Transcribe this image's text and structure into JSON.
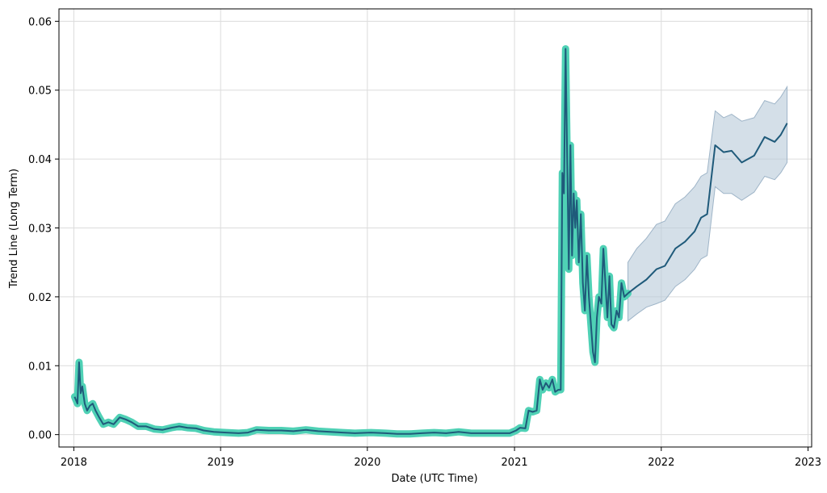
{
  "chart_data": {
    "type": "line",
    "title": "",
    "xlabel": "Date (UTC Time)",
    "ylabel": "Trend Line (Long Term)",
    "xlim": [
      "2017-11-25",
      "2023-01-10"
    ],
    "ylim": [
      -0.0018,
      0.0618
    ],
    "x_ticks": [
      "2018-01-01",
      "2019-01-01",
      "2020-01-01",
      "2021-01-01",
      "2022-01-01",
      "2023-01-01"
    ],
    "x_tick_labels": [
      "2018",
      "2019",
      "2020",
      "2021",
      "2022",
      "2023"
    ],
    "y_ticks": [
      0.0,
      0.01,
      0.02,
      0.03,
      0.04,
      0.05,
      0.06
    ],
    "y_tick_labels": [
      "0.00",
      "0.01",
      "0.02",
      "0.03",
      "0.04",
      "0.05",
      "0.06"
    ],
    "grid": true,
    "colors": {
      "line": "#1f5a7a",
      "history_band": "#4fd1b5",
      "forecast_band": "#b8c9d8"
    },
    "series": [
      {
        "role": "historical",
        "points": [
          [
            "2018-01-03",
            0.0055
          ],
          [
            "2018-01-10",
            0.0045
          ],
          [
            "2018-01-14",
            0.0105
          ],
          [
            "2018-01-18",
            0.006
          ],
          [
            "2018-01-22",
            0.007
          ],
          [
            "2018-01-28",
            0.0045
          ],
          [
            "2018-02-03",
            0.0035
          ],
          [
            "2018-02-10",
            0.0042
          ],
          [
            "2018-02-17",
            0.0045
          ],
          [
            "2018-02-24",
            0.0035
          ],
          [
            "2018-03-05",
            0.0025
          ],
          [
            "2018-03-15",
            0.0015
          ],
          [
            "2018-03-28",
            0.0018
          ],
          [
            "2018-04-10",
            0.0015
          ],
          [
            "2018-04-25",
            0.0025
          ],
          [
            "2018-05-10",
            0.0022
          ],
          [
            "2018-05-25",
            0.0018
          ],
          [
            "2018-06-10",
            0.0012
          ],
          [
            "2018-06-30",
            0.0012
          ],
          [
            "2018-07-20",
            0.0008
          ],
          [
            "2018-08-10",
            0.0007
          ],
          [
            "2018-09-01",
            0.001
          ],
          [
            "2018-09-20",
            0.0012
          ],
          [
            "2018-10-10",
            0.001
          ],
          [
            "2018-11-01",
            0.0009
          ],
          [
            "2018-11-20",
            0.0006
          ],
          [
            "2018-12-15",
            0.0004
          ],
          [
            "2019-01-15",
            0.0003
          ],
          [
            "2019-02-15",
            0.0002
          ],
          [
            "2019-03-10",
            0.0003
          ],
          [
            "2019-04-01",
            0.0007
          ],
          [
            "2019-05-01",
            0.0006
          ],
          [
            "2019-06-01",
            0.0006
          ],
          [
            "2019-07-01",
            0.0005
          ],
          [
            "2019-08-01",
            0.0007
          ],
          [
            "2019-09-01",
            0.0005
          ],
          [
            "2019-10-01",
            0.0004
          ],
          [
            "2019-11-01",
            0.0003
          ],
          [
            "2019-12-01",
            0.0002
          ],
          [
            "2020-01-10",
            0.0003
          ],
          [
            "2020-02-15",
            0.0002
          ],
          [
            "2020-03-15",
            0.0001
          ],
          [
            "2020-04-15",
            0.0001
          ],
          [
            "2020-05-15",
            0.0002
          ],
          [
            "2020-06-15",
            0.0003
          ],
          [
            "2020-07-15",
            0.0002
          ],
          [
            "2020-08-15",
            0.0004
          ],
          [
            "2020-09-15",
            0.0002
          ],
          [
            "2020-10-15",
            0.0002
          ],
          [
            "2020-11-15",
            0.0002
          ],
          [
            "2020-12-20",
            0.0002
          ],
          [
            "2021-01-05",
            0.0006
          ],
          [
            "2021-01-15",
            0.001
          ],
          [
            "2021-01-28",
            0.0009
          ],
          [
            "2021-02-05",
            0.0035
          ],
          [
            "2021-02-15",
            0.0033
          ],
          [
            "2021-02-25",
            0.0035
          ],
          [
            "2021-03-05",
            0.008
          ],
          [
            "2021-03-12",
            0.0065
          ],
          [
            "2021-03-20",
            0.0075
          ],
          [
            "2021-03-28",
            0.0068
          ],
          [
            "2021-04-05",
            0.008
          ],
          [
            "2021-04-12",
            0.0062
          ],
          [
            "2021-04-20",
            0.0065
          ],
          [
            "2021-04-26",
            0.0065
          ],
          [
            "2021-04-30",
            0.038
          ],
          [
            "2021-05-04",
            0.035
          ],
          [
            "2021-05-08",
            0.056
          ],
          [
            "2021-05-12",
            0.04
          ],
          [
            "2021-05-16",
            0.024
          ],
          [
            "2021-05-20",
            0.042
          ],
          [
            "2021-05-24",
            0.026
          ],
          [
            "2021-05-28",
            0.035
          ],
          [
            "2021-06-01",
            0.03
          ],
          [
            "2021-06-05",
            0.034
          ],
          [
            "2021-06-10",
            0.025
          ],
          [
            "2021-06-15",
            0.032
          ],
          [
            "2021-06-20",
            0.022
          ],
          [
            "2021-06-25",
            0.018
          ],
          [
            "2021-06-30",
            0.026
          ],
          [
            "2021-07-05",
            0.02
          ],
          [
            "2021-07-10",
            0.016
          ],
          [
            "2021-07-15",
            0.012
          ],
          [
            "2021-07-20",
            0.0105
          ],
          [
            "2021-07-25",
            0.017
          ],
          [
            "2021-07-30",
            0.02
          ],
          [
            "2021-08-05",
            0.019
          ],
          [
            "2021-08-10",
            0.027
          ],
          [
            "2021-08-15",
            0.022
          ],
          [
            "2021-08-20",
            0.017
          ],
          [
            "2021-08-25",
            0.023
          ],
          [
            "2021-08-30",
            0.016
          ],
          [
            "2021-09-05",
            0.0155
          ],
          [
            "2021-09-12",
            0.018
          ],
          [
            "2021-09-18",
            0.017
          ],
          [
            "2021-09-24",
            0.022
          ],
          [
            "2021-10-01",
            0.02
          ],
          [
            "2021-10-10",
            0.0205
          ]
        ]
      },
      {
        "role": "forecast",
        "points": [
          [
            "2021-10-10",
            0.0205
          ],
          [
            "2021-11-01",
            0.0215
          ],
          [
            "2021-11-25",
            0.0225
          ],
          [
            "2021-12-20",
            0.024
          ],
          [
            "2022-01-10",
            0.0245
          ],
          [
            "2022-02-05",
            0.027
          ],
          [
            "2022-03-01",
            0.028
          ],
          [
            "2022-03-25",
            0.0295
          ],
          [
            "2022-04-10",
            0.0315
          ],
          [
            "2022-04-25",
            0.032
          ],
          [
            "2022-05-15",
            0.042
          ],
          [
            "2022-06-05",
            0.041
          ],
          [
            "2022-06-25",
            0.0412
          ],
          [
            "2022-07-20",
            0.0395
          ],
          [
            "2022-08-20",
            0.0405
          ],
          [
            "2022-09-15",
            0.0432
          ],
          [
            "2022-10-10",
            0.0425
          ],
          [
            "2022-10-25",
            0.0435
          ],
          [
            "2022-11-10",
            0.0452
          ]
        ],
        "band_lower": [
          [
            "2021-10-10",
            0.0165
          ],
          [
            "2021-11-01",
            0.0175
          ],
          [
            "2021-11-25",
            0.0185
          ],
          [
            "2021-12-20",
            0.019
          ],
          [
            "2022-01-10",
            0.0195
          ],
          [
            "2022-02-05",
            0.0215
          ],
          [
            "2022-03-01",
            0.0225
          ],
          [
            "2022-03-25",
            0.024
          ],
          [
            "2022-04-10",
            0.0255
          ],
          [
            "2022-04-25",
            0.026
          ],
          [
            "2022-05-15",
            0.036
          ],
          [
            "2022-06-05",
            0.035
          ],
          [
            "2022-06-25",
            0.035
          ],
          [
            "2022-07-20",
            0.034
          ],
          [
            "2022-08-20",
            0.0352
          ],
          [
            "2022-09-15",
            0.0375
          ],
          [
            "2022-10-10",
            0.037
          ],
          [
            "2022-10-25",
            0.038
          ],
          [
            "2022-11-10",
            0.0395
          ]
        ],
        "band_upper": [
          [
            "2021-10-10",
            0.025
          ],
          [
            "2021-11-01",
            0.027
          ],
          [
            "2021-11-25",
            0.0285
          ],
          [
            "2021-12-20",
            0.0305
          ],
          [
            "2022-01-10",
            0.031
          ],
          [
            "2022-02-05",
            0.0335
          ],
          [
            "2022-03-01",
            0.0345
          ],
          [
            "2022-03-25",
            0.036
          ],
          [
            "2022-04-10",
            0.0375
          ],
          [
            "2022-04-25",
            0.038
          ],
          [
            "2022-05-15",
            0.047
          ],
          [
            "2022-06-05",
            0.046
          ],
          [
            "2022-06-25",
            0.0465
          ],
          [
            "2022-07-20",
            0.0455
          ],
          [
            "2022-08-20",
            0.046
          ],
          [
            "2022-09-15",
            0.0485
          ],
          [
            "2022-10-10",
            0.048
          ],
          [
            "2022-10-25",
            0.049
          ],
          [
            "2022-11-10",
            0.0505
          ]
        ]
      }
    ]
  }
}
